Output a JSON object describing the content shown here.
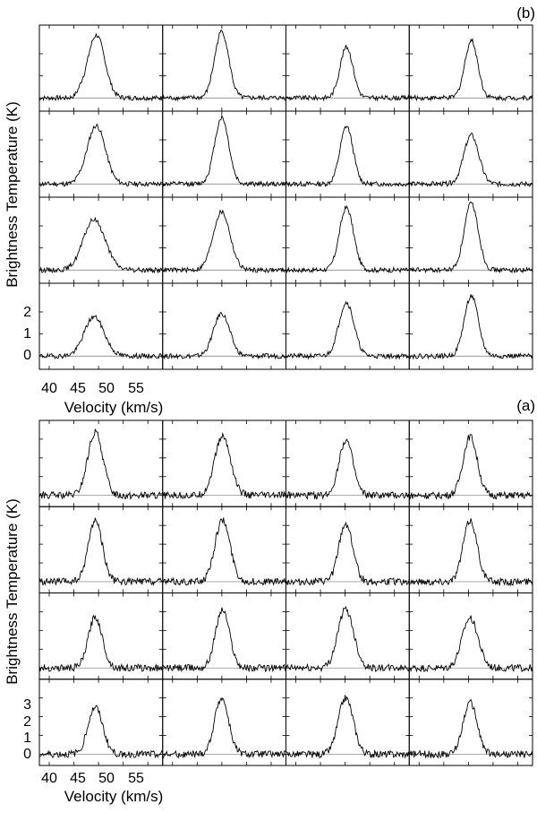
{
  "figure": {
    "panels": [
      {
        "id": "b",
        "label": "(b)",
        "xlabel": "Velocity (km/s)",
        "ylabel": "Brightness Temperature (K)",
        "x_ticks": [
          "40",
          "45",
          "50",
          "55"
        ],
        "y_ticks": [
          "0",
          "1",
          "2"
        ]
      },
      {
        "id": "a",
        "label": "(a)",
        "xlabel": "Velocity (km/s)",
        "ylabel": "Brightness Temperature (K)",
        "x_ticks": [
          "40",
          "45",
          "50",
          "55"
        ],
        "y_ticks": [
          "0",
          "1",
          "2",
          "3"
        ]
      }
    ]
  },
  "chart_data": [
    {
      "type": "line",
      "title": "(b)",
      "xlabel": "Velocity (km/s)",
      "ylabel": "Brightness Temperature (K)",
      "xlim": [
        38,
        63
      ],
      "ylim": [
        -0.6,
        3.3
      ],
      "grid": "4x4 spectra",
      "baseline": 0,
      "series": [
        {
          "row": 0,
          "col": 0,
          "peak_velocity": 49.6,
          "peak_T": 2.8,
          "width": 1.7,
          "shoulder_velocity": 47.6,
          "shoulder_T": 1.9
        },
        {
          "row": 0,
          "col": 1,
          "peak_velocity": 50.0,
          "peak_T": 3.0,
          "width": 1.4,
          "shoulder_velocity": 48.2,
          "shoulder_T": 1.1
        },
        {
          "row": 0,
          "col": 2,
          "peak_velocity": 50.3,
          "peak_T": 2.3,
          "width": 1.3,
          "shoulder_velocity": 48.8,
          "shoulder_T": 0.6
        },
        {
          "row": 0,
          "col": 3,
          "peak_velocity": 50.6,
          "peak_T": 2.6,
          "width": 1.3,
          "shoulder_velocity": 49.0,
          "shoulder_T": 0.5
        },
        {
          "row": 1,
          "col": 0,
          "peak_velocity": 49.6,
          "peak_T": 2.6,
          "width": 1.8,
          "shoulder_velocity": 47.6,
          "shoulder_T": 1.7
        },
        {
          "row": 1,
          "col": 1,
          "peak_velocity": 50.0,
          "peak_T": 3.0,
          "width": 1.4,
          "shoulder_velocity": 48.2,
          "shoulder_T": 1.2
        },
        {
          "row": 1,
          "col": 2,
          "peak_velocity": 50.3,
          "peak_T": 2.6,
          "width": 1.3,
          "shoulder_velocity": 49.0,
          "shoulder_T": 0.5
        },
        {
          "row": 1,
          "col": 3,
          "peak_velocity": 50.6,
          "peak_T": 2.2,
          "width": 1.5,
          "shoulder_velocity": 49.2,
          "shoulder_T": 0.4
        },
        {
          "row": 2,
          "col": 0,
          "peak_velocity": 49.2,
          "peak_T": 2.2,
          "width": 2.2,
          "shoulder_velocity": 47.8,
          "shoulder_T": 1.5
        },
        {
          "row": 2,
          "col": 1,
          "peak_velocity": 50.0,
          "peak_T": 2.6,
          "width": 1.7,
          "shoulder_velocity": 48.3,
          "shoulder_T": 1.2
        },
        {
          "row": 2,
          "col": 2,
          "peak_velocity": 50.3,
          "peak_T": 2.8,
          "width": 1.4,
          "shoulder_velocity": 48.8,
          "shoulder_T": 1.0
        },
        {
          "row": 2,
          "col": 3,
          "peak_velocity": 50.6,
          "peak_T": 3.0,
          "width": 1.4,
          "shoulder_velocity": 49.2,
          "shoulder_T": 0.8
        },
        {
          "row": 3,
          "col": 0,
          "peak_velocity": 49.2,
          "peak_T": 1.7,
          "width": 2.0,
          "shoulder_velocity": 48.0,
          "shoulder_T": 1.4
        },
        {
          "row": 3,
          "col": 1,
          "peak_velocity": 50.0,
          "peak_T": 1.9,
          "width": 1.6,
          "shoulder_velocity": 48.4,
          "shoulder_T": 1.0
        },
        {
          "row": 3,
          "col": 2,
          "peak_velocity": 50.3,
          "peak_T": 2.4,
          "width": 1.5,
          "shoulder_velocity": 48.8,
          "shoulder_T": 1.1
        },
        {
          "row": 3,
          "col": 3,
          "peak_velocity": 50.6,
          "peak_T": 2.7,
          "width": 1.4,
          "shoulder_velocity": 49.2,
          "shoulder_T": 0.9
        }
      ]
    },
    {
      "type": "line",
      "title": "(a)",
      "xlabel": "Velocity (km/s)",
      "ylabel": "Brightness Temperature (K)",
      "xlim": [
        38,
        63
      ],
      "ylim": [
        -0.6,
        4.0
      ],
      "grid": "4x4 spectra",
      "baseline": 0,
      "series": [
        {
          "row": 0,
          "col": 0,
          "peak_velocity": 49.4,
          "peak_T": 3.3,
          "width": 1.5,
          "shoulder_velocity": 48.0,
          "shoulder_T": 1.8
        },
        {
          "row": 0,
          "col": 1,
          "peak_velocity": 50.2,
          "peak_T": 3.1,
          "width": 1.6,
          "shoulder_velocity": 48.6,
          "shoulder_T": 1.5
        },
        {
          "row": 0,
          "col": 2,
          "peak_velocity": 50.2,
          "peak_T": 2.9,
          "width": 1.4,
          "shoulder_velocity": 48.8,
          "shoulder_T": 1.4
        },
        {
          "row": 0,
          "col": 3,
          "peak_velocity": 50.4,
          "peak_T": 3.1,
          "width": 1.4,
          "shoulder_velocity": 49.0,
          "shoulder_T": 1.4
        },
        {
          "row": 1,
          "col": 0,
          "peak_velocity": 49.4,
          "peak_T": 3.2,
          "width": 1.4,
          "shoulder_velocity": 48.2,
          "shoulder_T": 2.2
        },
        {
          "row": 1,
          "col": 1,
          "peak_velocity": 50.2,
          "peak_T": 3.2,
          "width": 1.5,
          "shoulder_velocity": 48.8,
          "shoulder_T": 2.2
        },
        {
          "row": 1,
          "col": 2,
          "peak_velocity": 50.2,
          "peak_T": 3.0,
          "width": 1.4,
          "shoulder_velocity": 49.0,
          "shoulder_T": 2.0
        },
        {
          "row": 1,
          "col": 3,
          "peak_velocity": 50.4,
          "peak_T": 3.2,
          "width": 1.4,
          "shoulder_velocity": 49.0,
          "shoulder_T": 1.8
        },
        {
          "row": 2,
          "col": 0,
          "peak_velocity": 49.4,
          "peak_T": 2.6,
          "width": 1.4,
          "shoulder_velocity": 48.4,
          "shoulder_T": 2.2
        },
        {
          "row": 2,
          "col": 1,
          "peak_velocity": 50.2,
          "peak_T": 3.0,
          "width": 1.4,
          "shoulder_velocity": 49.0,
          "shoulder_T": 2.4
        },
        {
          "row": 2,
          "col": 2,
          "peak_velocity": 50.2,
          "peak_T": 3.0,
          "width": 1.6,
          "shoulder_velocity": 49.0,
          "shoulder_T": 2.4
        },
        {
          "row": 2,
          "col": 3,
          "peak_velocity": 50.4,
          "peak_T": 2.6,
          "width": 1.6,
          "shoulder_velocity": 49.0,
          "shoulder_T": 1.6
        },
        {
          "row": 3,
          "col": 0,
          "peak_velocity": 49.4,
          "peak_T": 2.4,
          "width": 1.5,
          "shoulder_velocity": 48.4,
          "shoulder_T": 1.8
        },
        {
          "row": 3,
          "col": 1,
          "peak_velocity": 50.0,
          "peak_T": 2.9,
          "width": 1.4,
          "shoulder_velocity": 49.0,
          "shoulder_T": 2.2
        },
        {
          "row": 3,
          "col": 2,
          "peak_velocity": 50.2,
          "peak_T": 2.9,
          "width": 1.5,
          "shoulder_velocity": 49.0,
          "shoulder_T": 2.2
        },
        {
          "row": 3,
          "col": 3,
          "peak_velocity": 50.4,
          "peak_T": 2.7,
          "width": 1.4,
          "shoulder_velocity": 49.0,
          "shoulder_T": 1.8
        }
      ]
    }
  ]
}
